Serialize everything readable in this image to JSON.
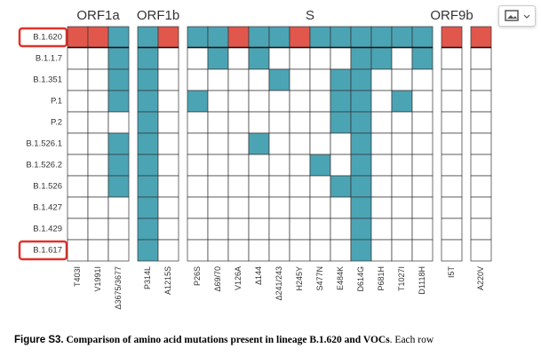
{
  "figure": {
    "groups": [
      {
        "label": "ORF1a",
        "columns": [
          "T403I",
          "V1991I",
          "Δ3675/3677"
        ]
      },
      {
        "label": "ORF1b",
        "columns": [
          "P314L",
          "A1215S"
        ]
      },
      {
        "label": "S",
        "columns": [
          "P26S",
          "Δ69/70",
          "V126A",
          "Δ144",
          "Δ241/243",
          "H245Y",
          "S477N",
          "E484K",
          "D614G",
          "P681H",
          "T1027I",
          "D1118H"
        ]
      },
      {
        "label": "ORF9b",
        "columns": [
          "I5T"
        ]
      },
      {
        "columns": [
          "A220V"
        ]
      }
    ],
    "colors": [
      "#ffffff",
      "#4ba4b4",
      "#e2574c"
    ],
    "rows": [
      {
        "label": "B.1.620",
        "highlight": true,
        "cells": [
          [
            2,
            2,
            1
          ],
          [
            1,
            2
          ],
          [
            1,
            1,
            2,
            1,
            1,
            2,
            1,
            1,
            1,
            1,
            1,
            1
          ],
          [
            2
          ],
          [
            2
          ]
        ]
      },
      {
        "label": "B.1.1.7",
        "cells": [
          [
            0,
            0,
            1
          ],
          [
            1,
            0
          ],
          [
            0,
            1,
            0,
            1,
            0,
            0,
            0,
            0,
            1,
            1,
            0,
            1
          ],
          [
            0
          ],
          [
            0
          ]
        ]
      },
      {
        "label": "B.1.351",
        "cells": [
          [
            0,
            0,
            1
          ],
          [
            1,
            0
          ],
          [
            0,
            0,
            0,
            0,
            1,
            0,
            0,
            1,
            1,
            0,
            0,
            0
          ],
          [
            0
          ],
          [
            0
          ]
        ]
      },
      {
        "label": "P.1",
        "cells": [
          [
            0,
            0,
            1
          ],
          [
            1,
            0
          ],
          [
            1,
            0,
            0,
            0,
            0,
            0,
            0,
            1,
            1,
            0,
            1,
            0
          ],
          [
            0
          ],
          [
            0
          ]
        ]
      },
      {
        "label": "P.2",
        "cells": [
          [
            0,
            0,
            0
          ],
          [
            1,
            0
          ],
          [
            0,
            0,
            0,
            0,
            0,
            0,
            0,
            1,
            1,
            0,
            0,
            0
          ],
          [
            0
          ],
          [
            0
          ]
        ]
      },
      {
        "label": "B.1.526.1",
        "cells": [
          [
            0,
            0,
            1
          ],
          [
            1,
            0
          ],
          [
            0,
            0,
            0,
            1,
            0,
            0,
            0,
            0,
            1,
            0,
            0,
            0
          ],
          [
            0
          ],
          [
            0
          ]
        ]
      },
      {
        "label": "B.1.526.2",
        "cells": [
          [
            0,
            0,
            1
          ],
          [
            1,
            0
          ],
          [
            0,
            0,
            0,
            0,
            0,
            0,
            1,
            0,
            1,
            0,
            0,
            0
          ],
          [
            0
          ],
          [
            0
          ]
        ]
      },
      {
        "label": "B.1.526",
        "cells": [
          [
            0,
            0,
            1
          ],
          [
            1,
            0
          ],
          [
            0,
            0,
            0,
            0,
            0,
            0,
            0,
            1,
            1,
            0,
            0,
            0
          ],
          [
            0
          ],
          [
            0
          ]
        ]
      },
      {
        "label": "B.1.427",
        "cells": [
          [
            0,
            0,
            0
          ],
          [
            1,
            0
          ],
          [
            0,
            0,
            0,
            0,
            0,
            0,
            0,
            0,
            1,
            0,
            0,
            0
          ],
          [
            0
          ],
          [
            0
          ]
        ]
      },
      {
        "label": "B.1.429",
        "cells": [
          [
            0,
            0,
            0
          ],
          [
            1,
            0
          ],
          [
            0,
            0,
            0,
            0,
            0,
            0,
            0,
            0,
            1,
            0,
            0,
            0
          ],
          [
            0
          ],
          [
            0
          ]
        ]
      },
      {
        "label": "B.1.617",
        "highlight": true,
        "cells": [
          [
            0,
            0,
            0
          ],
          [
            1,
            0
          ],
          [
            0,
            0,
            0,
            0,
            0,
            0,
            0,
            0,
            1,
            0,
            0,
            0
          ],
          [
            0
          ],
          [
            0
          ]
        ]
      }
    ]
  },
  "caption": {
    "number": "Figure S3.",
    "title": "Comparison of amino acid mutations present in lineage B.1.620 and VOCs",
    "text": ". Each row"
  }
}
